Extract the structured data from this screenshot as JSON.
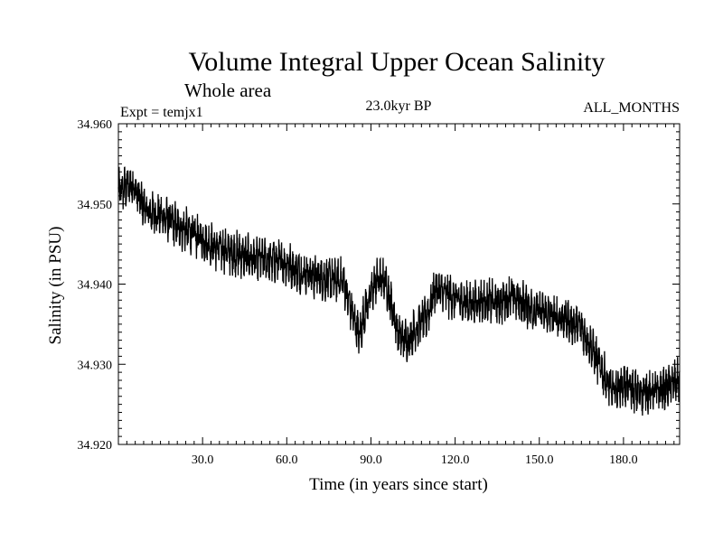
{
  "chart_data": {
    "type": "line",
    "title": "Volume Integral Upper Ocean Salinity",
    "subtitle": "Whole area",
    "expt_label": "Expt = temjx1",
    "period_label": "23.0kyr BP",
    "months_label": "ALL_MONTHS",
    "xlabel": "Time (in years since start)",
    "ylabel": "Salinity (in PSU)",
    "xlim": [
      0,
      200
    ],
    "ylim": [
      34.92,
      34.96
    ],
    "x_ticks": [
      30,
      60,
      90,
      120,
      150,
      180
    ],
    "x_tick_labels": [
      "30.0",
      "60.0",
      "90.0",
      "120.0",
      "150.0",
      "180.0"
    ],
    "y_ticks": [
      34.92,
      34.93,
      34.94,
      34.95,
      34.96
    ],
    "y_tick_labels": [
      "34.920",
      "34.930",
      "34.940",
      "34.950",
      "34.960"
    ],
    "series": [
      {
        "name": "Salinity",
        "color": "#000000",
        "trend_x": [
          0,
          5,
          10,
          15,
          20,
          25,
          30,
          35,
          40,
          45,
          50,
          55,
          60,
          65,
          70,
          75,
          80,
          84,
          86,
          88,
          92,
          95,
          98,
          100,
          103,
          106,
          110,
          113,
          118,
          125,
          130,
          135,
          140,
          145,
          150,
          155,
          160,
          165,
          168,
          172,
          176,
          180,
          185,
          190,
          195,
          200
        ],
        "trend_y": [
          34.9515,
          34.9525,
          34.949,
          34.9485,
          34.9475,
          34.9465,
          34.9455,
          34.9445,
          34.944,
          34.9435,
          34.943,
          34.943,
          34.9425,
          34.9415,
          34.941,
          34.9405,
          34.9405,
          34.9355,
          34.9335,
          34.937,
          34.9405,
          34.9405,
          34.9365,
          34.9335,
          34.933,
          34.9345,
          34.936,
          34.9395,
          34.9385,
          34.9375,
          34.938,
          34.9375,
          34.9385,
          34.9375,
          34.9365,
          34.936,
          34.9355,
          34.9345,
          34.9325,
          34.9295,
          34.9265,
          34.9275,
          34.9265,
          34.9265,
          34.927,
          34.928
        ],
        "variability_psu": 0.0028,
        "annual_cycle_per_year": 1
      }
    ]
  }
}
